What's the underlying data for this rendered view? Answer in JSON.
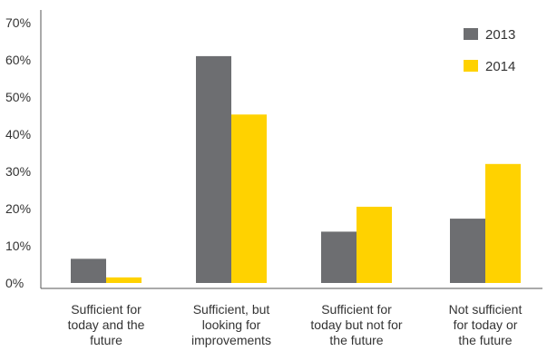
{
  "chart_data": {
    "type": "bar",
    "title": "",
    "xlabel": "",
    "ylabel": "",
    "ylim": [
      0,
      70
    ],
    "y_ticks": [
      "0%",
      "10%",
      "20%",
      "30%",
      "40%",
      "50%",
      "60%",
      "70%"
    ],
    "y_tick_values": [
      0,
      10,
      20,
      30,
      40,
      50,
      60,
      70
    ],
    "categories": [
      [
        "Sufficient for",
        "today and the",
        "future"
      ],
      [
        "Sufficient, but",
        "looking for",
        "improvements"
      ],
      [
        "Sufficient for",
        "today but not for",
        "the future"
      ],
      [
        "Not sufficient",
        "for today or",
        "the future"
      ]
    ],
    "series": [
      {
        "name": "2013",
        "color": "#6d6e71",
        "values": [
          6.5,
          61,
          13.8,
          17.3
        ]
      },
      {
        "name": "2014",
        "color": "#ffd200",
        "values": [
          1.5,
          45.3,
          20.5,
          32
        ]
      }
    ],
    "legend_position": "top-right",
    "grid": false
  }
}
